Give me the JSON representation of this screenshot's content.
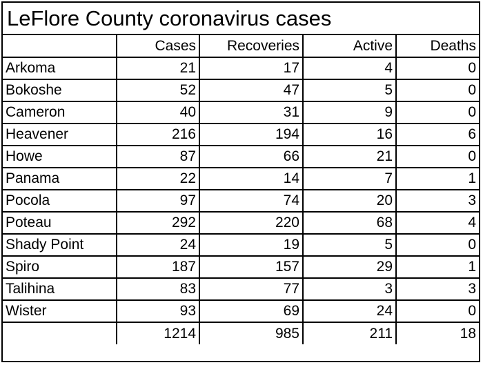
{
  "title": "LeFlore County coronavirus cases",
  "columns": [
    "",
    "Cases",
    "Recoveries",
    "Active",
    "Deaths"
  ],
  "rows": [
    {
      "name": "Arkoma",
      "cases": "21",
      "recoveries": "17",
      "active": "4",
      "deaths": "0"
    },
    {
      "name": "Bokoshe",
      "cases": "52",
      "recoveries": "47",
      "active": "5",
      "deaths": "0"
    },
    {
      "name": "Cameron",
      "cases": "40",
      "recoveries": "31",
      "active": "9",
      "deaths": "0"
    },
    {
      "name": "Heavener",
      "cases": "216",
      "recoveries": "194",
      "active": "16",
      "deaths": "6"
    },
    {
      "name": "Howe",
      "cases": "87",
      "recoveries": "66",
      "active": "21",
      "deaths": "0"
    },
    {
      "name": "Panama",
      "cases": "22",
      "recoveries": "14",
      "active": "7",
      "deaths": "1"
    },
    {
      "name": "Pocola",
      "cases": "97",
      "recoveries": "74",
      "active": "20",
      "deaths": "3"
    },
    {
      "name": "Poteau",
      "cases": "292",
      "recoveries": "220",
      "active": "68",
      "deaths": "4"
    },
    {
      "name": "Shady Point",
      "cases": "24",
      "recoveries": "19",
      "active": "5",
      "deaths": "0"
    },
    {
      "name": "Spiro",
      "cases": "187",
      "recoveries": "157",
      "active": "29",
      "deaths": "1"
    },
    {
      "name": "Talihina",
      "cases": "83",
      "recoveries": "77",
      "active": "3",
      "deaths": "3"
    },
    {
      "name": "Wister",
      "cases": "93",
      "recoveries": "69",
      "active": "24",
      "deaths": "0"
    }
  ],
  "totals": {
    "name": "",
    "cases": "1214",
    "recoveries": "985",
    "active": "211",
    "deaths": "18"
  }
}
